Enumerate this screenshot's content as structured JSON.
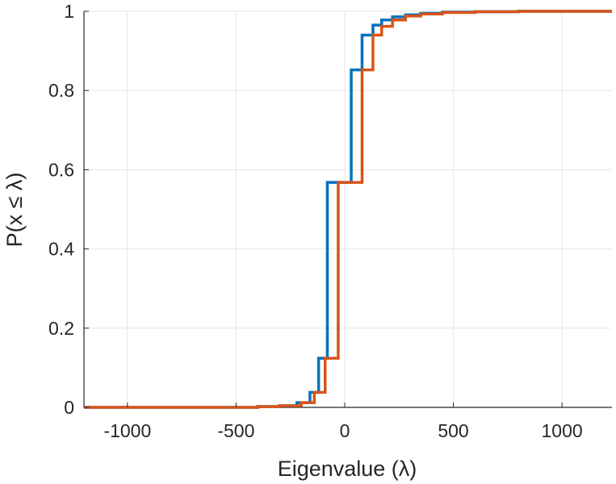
{
  "chart_data": {
    "type": "line",
    "title": "",
    "xlabel": "Eigenvalue (λ)",
    "ylabel": "P(x ≤ λ)",
    "xlim": [
      -1200,
      1230
    ],
    "ylim": [
      0,
      1
    ],
    "x_ticks": [
      -1000,
      -500,
      0,
      500,
      1000
    ],
    "x_tick_labels": [
      "-1000",
      "-500",
      "0",
      "500",
      "1000"
    ],
    "y_ticks": [
      0,
      0.2,
      0.4,
      0.6,
      0.8,
      1
    ],
    "y_tick_labels": [
      "0",
      "0.2",
      "0.4",
      "0.6",
      "0.8",
      "1"
    ],
    "grid": true,
    "step": true,
    "series": [
      {
        "color": "#0072BD",
        "x": [
          -1200,
          -1150,
          -400,
          -300,
          -220,
          -160,
          -120,
          -80,
          30,
          80,
          130,
          170,
          220,
          280,
          350,
          450,
          600,
          800,
          1230
        ],
        "y": [
          0,
          0,
          0.002,
          0.004,
          0.012,
          0.038,
          0.124,
          0.568,
          0.852,
          0.94,
          0.965,
          0.978,
          0.986,
          0.991,
          0.995,
          0.998,
          0.999,
          1.0,
          1.0
        ]
      },
      {
        "color": "#D95319",
        "x": [
          -1200,
          -1150,
          -400,
          -300,
          -200,
          -140,
          -90,
          -30,
          80,
          130,
          170,
          220,
          280,
          350,
          450,
          600,
          800,
          1230
        ],
        "y": [
          0,
          0,
          0.002,
          0.004,
          0.012,
          0.038,
          0.124,
          0.568,
          0.852,
          0.94,
          0.962,
          0.978,
          0.988,
          0.993,
          0.997,
          0.999,
          1.0,
          1.0
        ]
      }
    ]
  }
}
